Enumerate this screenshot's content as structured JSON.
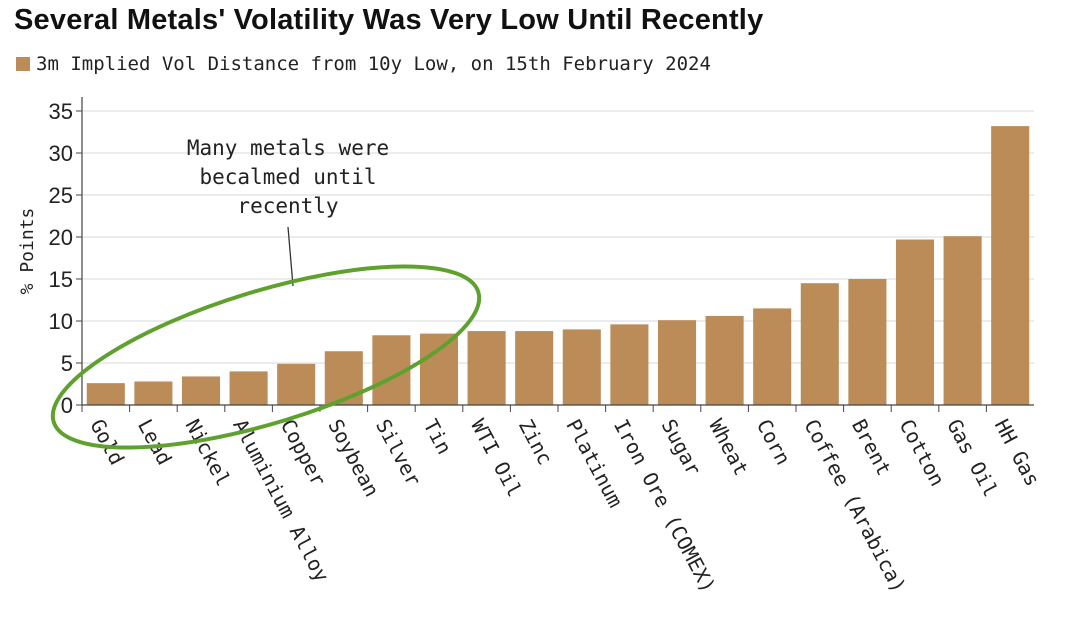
{
  "colors": {
    "bar": "#BB8C57",
    "highlight": "#5FA12F",
    "grid": "#D8D8D8",
    "axis": "#444444"
  },
  "chart_data": {
    "type": "bar",
    "title": "Several Metals' Volatility Was Very Low Until Recently",
    "legend": "3m Implied Vol Distance from 10y Low, on 15th February 2024",
    "legend_position": "top-left",
    "ylabel": "% Points",
    "xlabel": "",
    "ylim": [
      0,
      35
    ],
    "yticks": [
      0,
      5,
      10,
      15,
      20,
      25,
      30,
      35
    ],
    "grid": true,
    "categories": [
      "Gold",
      "Lead",
      "Nickel",
      "Aluminium Alloy",
      "Copper",
      "Soybean",
      "Silver",
      "Tin",
      "WTI Oil",
      "Zinc",
      "Platinum",
      "Iron Ore (COMEX)",
      "Sugar",
      "Wheat",
      "Corn",
      "Coffee (Arabica)",
      "Brent",
      "Cotton",
      "Gas Oil",
      "HH Gas"
    ],
    "values": [
      2.6,
      2.8,
      3.4,
      4.0,
      4.9,
      6.4,
      8.3,
      8.5,
      8.8,
      8.8,
      9.0,
      9.6,
      10.1,
      10.6,
      11.5,
      14.5,
      15.0,
      19.7,
      20.1,
      33.2
    ],
    "annotation": {
      "lines": [
        "Many metals were",
        "becalmed until",
        "recently"
      ]
    }
  }
}
